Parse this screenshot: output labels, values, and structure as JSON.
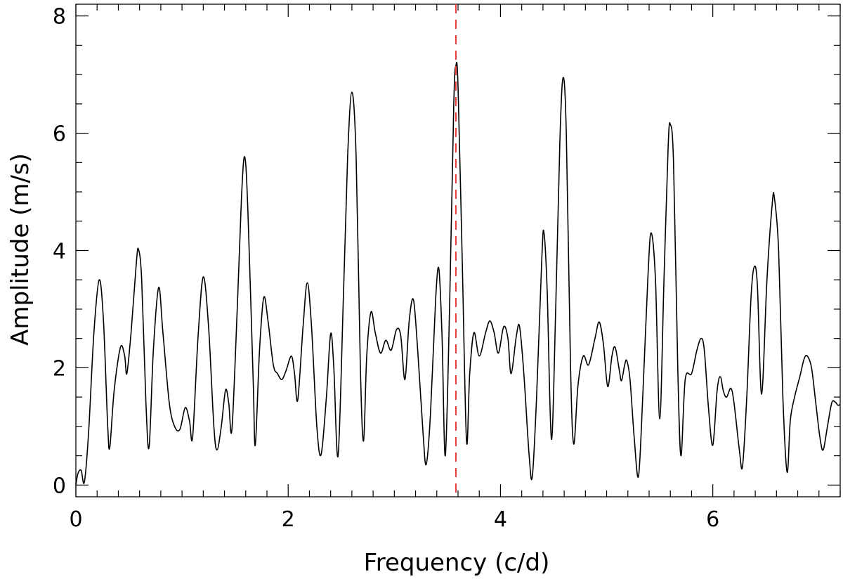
{
  "chart_data": {
    "type": "line",
    "title": "",
    "xlabel": "Frequency (c/d)",
    "ylabel": "Amplitude (m/s)",
    "xlim": [
      0,
      7.2
    ],
    "ylim": [
      -0.2,
      8.2
    ],
    "x_ticks": [
      0,
      2,
      4,
      6
    ],
    "x_tick_labels": [
      "0",
      "2",
      "4",
      "6"
    ],
    "x_minor_step": 0.2,
    "y_ticks": [
      0,
      2,
      4,
      6,
      8
    ],
    "y_tick_labels": [
      "0",
      "2",
      "4",
      "6",
      "8"
    ],
    "y_minor_step": 0.5,
    "grid": false,
    "line_color": "#000000",
    "marker_color": "#e8403e",
    "marker": {
      "x": 3.58,
      "style": "dashed"
    },
    "series": [
      {
        "points": [
          [
            0.0,
            0.0
          ],
          [
            0.02,
            0.2
          ],
          [
            0.05,
            0.25
          ],
          [
            0.08,
            0.05
          ],
          [
            0.12,
            0.9
          ],
          [
            0.17,
            2.6
          ],
          [
            0.22,
            3.5
          ],
          [
            0.26,
            2.8
          ],
          [
            0.3,
            1.0
          ],
          [
            0.32,
            0.65
          ],
          [
            0.36,
            1.6
          ],
          [
            0.42,
            2.35
          ],
          [
            0.46,
            2.2
          ],
          [
            0.48,
            1.9
          ],
          [
            0.52,
            2.6
          ],
          [
            0.57,
            3.8
          ],
          [
            0.59,
            4.02
          ],
          [
            0.62,
            3.5
          ],
          [
            0.66,
            1.4
          ],
          [
            0.69,
            0.65
          ],
          [
            0.73,
            2.3
          ],
          [
            0.78,
            3.37
          ],
          [
            0.82,
            2.6
          ],
          [
            0.88,
            1.4
          ],
          [
            0.93,
            1.0
          ],
          [
            0.98,
            0.95
          ],
          [
            1.03,
            1.32
          ],
          [
            1.07,
            1.1
          ],
          [
            1.1,
            0.82
          ],
          [
            1.15,
            2.5
          ],
          [
            1.2,
            3.55
          ],
          [
            1.25,
            2.7
          ],
          [
            1.3,
            1.0
          ],
          [
            1.33,
            0.6
          ],
          [
            1.37,
            1.0
          ],
          [
            1.41,
            1.62
          ],
          [
            1.44,
            1.4
          ],
          [
            1.47,
            0.95
          ],
          [
            1.52,
            3.0
          ],
          [
            1.56,
            4.9
          ],
          [
            1.59,
            5.6
          ],
          [
            1.62,
            4.7
          ],
          [
            1.67,
            1.8
          ],
          [
            1.69,
            0.68
          ],
          [
            1.73,
            2.3
          ],
          [
            1.77,
            3.2
          ],
          [
            1.81,
            2.8
          ],
          [
            1.86,
            2.05
          ],
          [
            1.9,
            1.9
          ],
          [
            1.94,
            1.8
          ],
          [
            1.98,
            1.95
          ],
          [
            2.03,
            2.2
          ],
          [
            2.06,
            1.9
          ],
          [
            2.09,
            1.45
          ],
          [
            2.14,
            2.7
          ],
          [
            2.18,
            3.45
          ],
          [
            2.22,
            2.7
          ],
          [
            2.27,
            1.0
          ],
          [
            2.31,
            0.52
          ],
          [
            2.36,
            1.5
          ],
          [
            2.4,
            2.58
          ],
          [
            2.43,
            2.0
          ],
          [
            2.47,
            0.5
          ],
          [
            2.52,
            3.2
          ],
          [
            2.56,
            5.6
          ],
          [
            2.6,
            6.7
          ],
          [
            2.64,
            5.6
          ],
          [
            2.68,
            2.0
          ],
          [
            2.71,
            0.75
          ],
          [
            2.74,
            2.2
          ],
          [
            2.78,
            2.95
          ],
          [
            2.82,
            2.6
          ],
          [
            2.87,
            2.25
          ],
          [
            2.92,
            2.47
          ],
          [
            2.97,
            2.3
          ],
          [
            3.02,
            2.65
          ],
          [
            3.06,
            2.55
          ],
          [
            3.1,
            1.8
          ],
          [
            3.14,
            2.8
          ],
          [
            3.18,
            3.16
          ],
          [
            3.22,
            2.3
          ],
          [
            3.27,
            0.9
          ],
          [
            3.3,
            0.35
          ],
          [
            3.34,
            1.2
          ],
          [
            3.39,
            3.2
          ],
          [
            3.42,
            3.68
          ],
          [
            3.45,
            2.5
          ],
          [
            3.48,
            0.5
          ],
          [
            3.52,
            3.0
          ],
          [
            3.56,
            6.5
          ],
          [
            3.58,
            7.15
          ],
          [
            3.6,
            6.8
          ],
          [
            3.64,
            3.8
          ],
          [
            3.68,
            0.75
          ],
          [
            3.71,
            1.9
          ],
          [
            3.75,
            2.6
          ],
          [
            3.8,
            2.2
          ],
          [
            3.86,
            2.6
          ],
          [
            3.9,
            2.8
          ],
          [
            3.94,
            2.6
          ],
          [
            3.98,
            2.25
          ],
          [
            4.03,
            2.7
          ],
          [
            4.07,
            2.5
          ],
          [
            4.1,
            1.9
          ],
          [
            4.15,
            2.55
          ],
          [
            4.18,
            2.7
          ],
          [
            4.22,
            1.9
          ],
          [
            4.27,
            0.5
          ],
          [
            4.3,
            0.15
          ],
          [
            4.34,
            1.5
          ],
          [
            4.39,
            3.9
          ],
          [
            4.41,
            4.3
          ],
          [
            4.44,
            3.3
          ],
          [
            4.48,
            0.78
          ],
          [
            4.52,
            3.0
          ],
          [
            4.56,
            5.9
          ],
          [
            4.59,
            6.95
          ],
          [
            4.62,
            6.0
          ],
          [
            4.66,
            2.0
          ],
          [
            4.69,
            0.7
          ],
          [
            4.73,
            1.7
          ],
          [
            4.78,
            2.2
          ],
          [
            4.83,
            2.05
          ],
          [
            4.89,
            2.5
          ],
          [
            4.93,
            2.78
          ],
          [
            4.97,
            2.4
          ],
          [
            5.01,
            1.68
          ],
          [
            5.05,
            2.2
          ],
          [
            5.08,
            2.35
          ],
          [
            5.12,
            1.95
          ],
          [
            5.14,
            1.78
          ],
          [
            5.17,
            2.05
          ],
          [
            5.19,
            2.12
          ],
          [
            5.22,
            1.8
          ],
          [
            5.26,
            0.8
          ],
          [
            5.3,
            0.15
          ],
          [
            5.34,
            1.5
          ],
          [
            5.39,
            3.6
          ],
          [
            5.42,
            4.3
          ],
          [
            5.46,
            3.5
          ],
          [
            5.5,
            1.13
          ],
          [
            5.54,
            3.5
          ],
          [
            5.58,
            5.8
          ],
          [
            5.6,
            6.15
          ],
          [
            5.63,
            5.5
          ],
          [
            5.67,
            2.0
          ],
          [
            5.7,
            0.5
          ],
          [
            5.74,
            1.8
          ],
          [
            5.8,
            1.9
          ],
          [
            5.85,
            2.3
          ],
          [
            5.89,
            2.5
          ],
          [
            5.92,
            2.3
          ],
          [
            5.96,
            1.3
          ],
          [
            6.0,
            0.68
          ],
          [
            6.04,
            1.6
          ],
          [
            6.07,
            1.85
          ],
          [
            6.1,
            1.6
          ],
          [
            6.13,
            1.5
          ],
          [
            6.17,
            1.65
          ],
          [
            6.2,
            1.4
          ],
          [
            6.25,
            0.6
          ],
          [
            6.28,
            0.32
          ],
          [
            6.32,
            1.5
          ],
          [
            6.36,
            3.2
          ],
          [
            6.39,
            3.72
          ],
          [
            6.42,
            3.4
          ],
          [
            6.46,
            1.55
          ],
          [
            6.51,
            3.5
          ],
          [
            6.56,
            4.8
          ],
          [
            6.58,
            4.9
          ],
          [
            6.62,
            4.0
          ],
          [
            6.66,
            1.5
          ],
          [
            6.7,
            0.22
          ],
          [
            6.73,
            1.1
          ],
          [
            6.77,
            1.5
          ],
          [
            6.82,
            1.85
          ],
          [
            6.86,
            2.15
          ],
          [
            6.89,
            2.2
          ],
          [
            6.93,
            2.0
          ],
          [
            6.97,
            1.4
          ],
          [
            7.01,
            0.8
          ],
          [
            7.04,
            0.6
          ],
          [
            7.08,
            1.0
          ],
          [
            7.12,
            1.4
          ],
          [
            7.15,
            1.42
          ],
          [
            7.18,
            1.36
          ],
          [
            7.2,
            1.38
          ]
        ]
      }
    ]
  }
}
